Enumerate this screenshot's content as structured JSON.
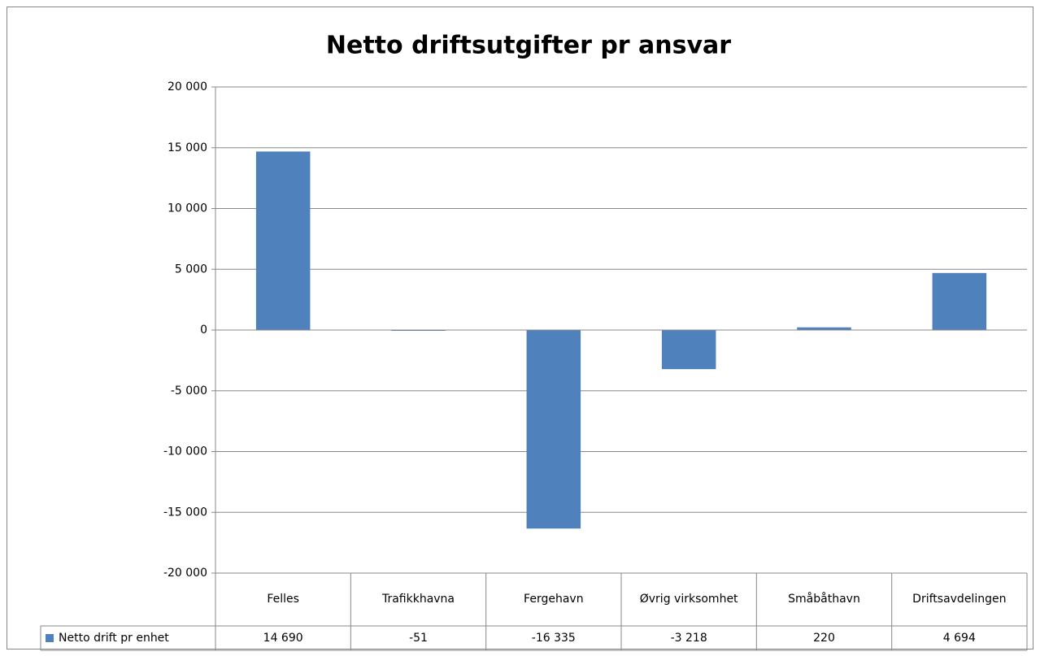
{
  "chart_data": {
    "type": "bar",
    "title": "Netto driftsutgifter pr ansvar",
    "categories": [
      "Felles",
      "Trafikkhavna",
      "Fergehavn",
      "Øvrig virksomhet",
      "Småbåthavn",
      "Driftsavdelingen"
    ],
    "series": [
      {
        "name": "Netto drift pr enhet",
        "color": "#4f81bd",
        "values": [
          14690,
          -51,
          -16335,
          -3218,
          220,
          4694
        ],
        "value_labels": [
          "14 690",
          "-51",
          "-16 335",
          "-3 218",
          "220",
          "4 694"
        ]
      }
    ],
    "ylim": [
      -20000,
      20000
    ],
    "yticks": [
      {
        "value": -20000,
        "label": "-20 000"
      },
      {
        "value": -15000,
        "label": "-15 000"
      },
      {
        "value": -10000,
        "label": "-10 000"
      },
      {
        "value": -5000,
        "label": "-5 000"
      },
      0,
      {
        "value": 5000,
        "label": "5 000"
      },
      {
        "value": 10000,
        "label": "10 000"
      },
      {
        "value": 15000,
        "label": "15 000"
      },
      {
        "value": 20000,
        "label": "20 000"
      }
    ],
    "grid": true
  }
}
